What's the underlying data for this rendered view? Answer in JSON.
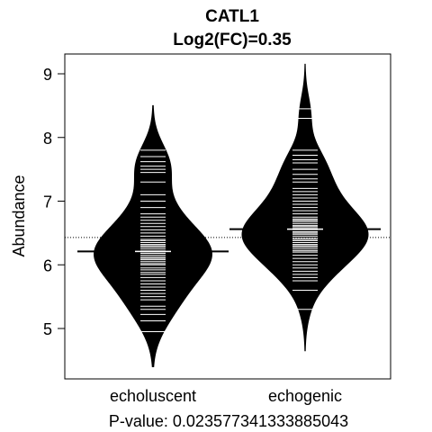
{
  "chart_data": {
    "type": "beanplot",
    "title": "CATL1",
    "subtitle": "Log2(FC)=0.35",
    "ylabel": "Abundance",
    "xlabel": "",
    "footer": "P-value: 0.023577341333885043",
    "ylim": [
      4.2,
      9.3
    ],
    "yticks": [
      5,
      6,
      7,
      8,
      9
    ],
    "overall_mean": 6.43,
    "series": [
      {
        "name": "echoluscent",
        "mean": 6.21,
        "min": 4.4,
        "max": 8.5,
        "values": [
          4.95,
          5.12,
          5.22,
          5.3,
          5.35,
          5.45,
          5.5,
          5.55,
          5.6,
          5.65,
          5.7,
          5.75,
          5.8,
          5.85,
          5.88,
          5.92,
          5.95,
          6.0,
          6.02,
          6.05,
          6.08,
          6.1,
          6.12,
          6.15,
          6.18,
          6.2,
          6.22,
          6.25,
          6.28,
          6.3,
          6.32,
          6.35,
          6.38,
          6.4,
          6.45,
          6.5,
          6.55,
          6.6,
          6.65,
          6.7,
          6.75,
          6.8,
          6.9,
          7.0,
          7.1,
          7.3,
          7.45,
          7.5,
          7.55,
          7.62,
          7.7,
          7.8
        ]
      },
      {
        "name": "echogenic",
        "mean": 6.56,
        "min": 4.65,
        "max": 9.15,
        "values": [
          5.3,
          5.6,
          5.75,
          5.8,
          5.85,
          5.9,
          5.95,
          6.0,
          6.05,
          6.1,
          6.15,
          6.2,
          6.22,
          6.25,
          6.28,
          6.3,
          6.32,
          6.35,
          6.38,
          6.4,
          6.42,
          6.45,
          6.48,
          6.5,
          6.52,
          6.55,
          6.58,
          6.6,
          6.62,
          6.65,
          6.68,
          6.7,
          6.72,
          6.75,
          6.8,
          6.85,
          6.9,
          6.95,
          7.0,
          7.05,
          7.1,
          7.15,
          7.2,
          7.3,
          7.35,
          7.42,
          7.5,
          7.6,
          7.65,
          7.72,
          7.8,
          8.3,
          8.45
        ]
      }
    ]
  }
}
